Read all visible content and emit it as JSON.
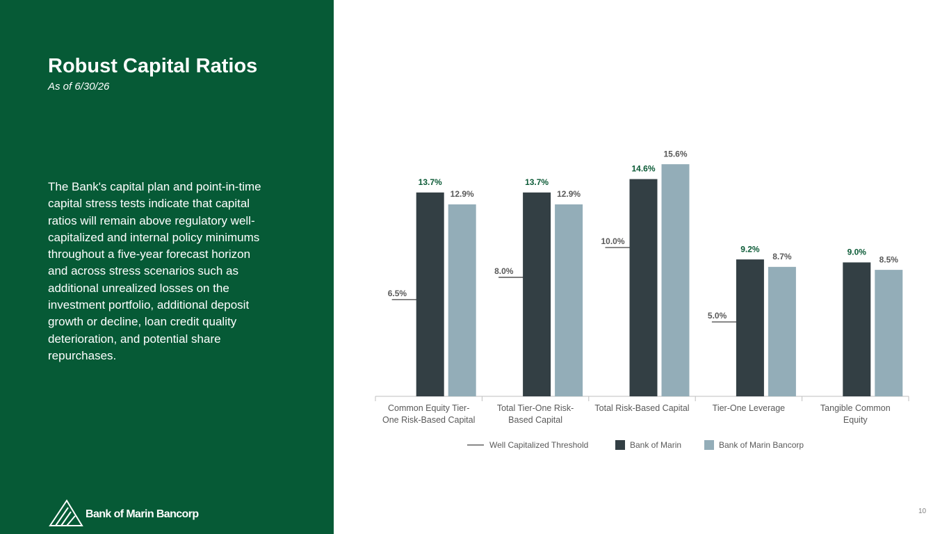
{
  "header": {
    "title": "Robust Capital Ratios",
    "subtitle": "As of 6/30/26"
  },
  "body": "The Bank's capital plan and point-in-time capital stress tests indicate that capital ratios will remain above regulatory well-capitalized and internal policy minimums throughout a five-year forecast horizon and across stress scenarios such as additional unrealized losses on the investment portfolio, additional deposit growth or decline, loan credit quality deterioration, and potential share repurchases.",
  "logo": "Bank of Marin Bancorp",
  "page_number": "10",
  "chart_data": {
    "type": "bar",
    "categories": [
      "Common Equity Tier-One Risk-Based Capital",
      "Total Tier-One Risk-Based Capital",
      "Total Risk-Based Capital",
      "Tier-One Leverage",
      "Tangible Common Equity"
    ],
    "series": [
      {
        "name": "Well Capitalized Threshold",
        "type": "line",
        "color": "#404040",
        "label_color": "#595959",
        "values": [
          6.5,
          8.0,
          10.0,
          5.0,
          null
        ],
        "value_labels": [
          "6.5%",
          "8.0%",
          "10.0%",
          "5.0%",
          null
        ]
      },
      {
        "name": "Bank of Marin",
        "color": "#333f44",
        "label_color": "#0b5a36",
        "values": [
          13.7,
          13.7,
          14.6,
          9.2,
          9.0
        ],
        "value_labels": [
          "13.7%",
          "13.7%",
          "14.6%",
          "9.2%",
          "9.0%"
        ]
      },
      {
        "name": "Bank of Marin Bancorp",
        "color": "#93adb8",
        "label_color": "#595959",
        "values": [
          12.9,
          12.9,
          15.6,
          8.7,
          8.5
        ],
        "value_labels": [
          "12.9%",
          "12.9%",
          "15.6%",
          "8.7%",
          "8.5%"
        ]
      }
    ],
    "ylim": [
      0,
      16
    ],
    "legend": "bottom"
  }
}
